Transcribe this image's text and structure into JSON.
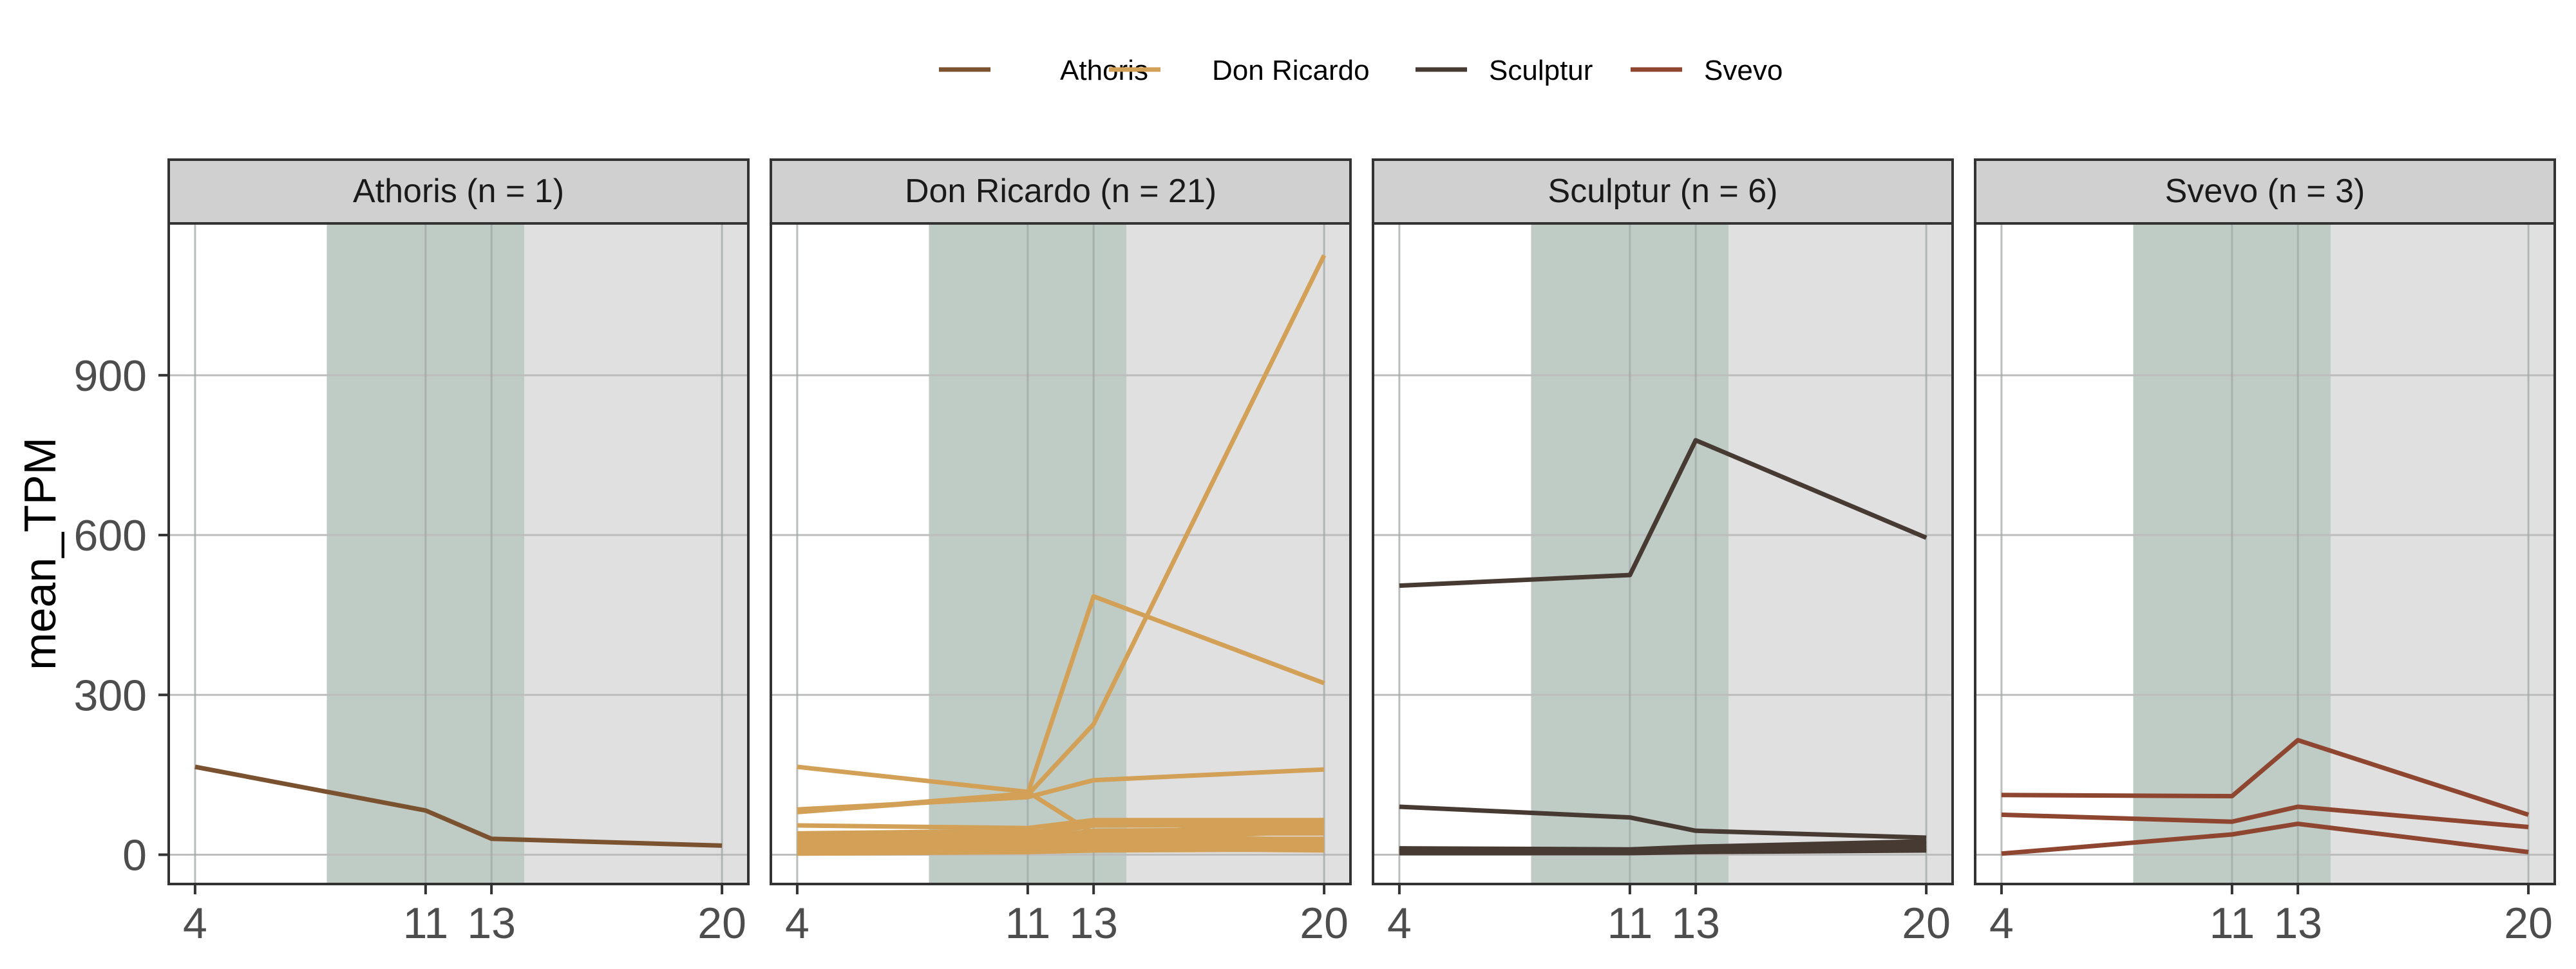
{
  "legend": {
    "entries": [
      {
        "label": "Athoris",
        "color": "#7b5230"
      },
      {
        "label": "Don Ricardo",
        "color": "#d2a056"
      },
      {
        "label": "Sculptur",
        "color": "#463a33"
      },
      {
        "label": "Svevo",
        "color": "#8f4630"
      }
    ]
  },
  "chart_data": {
    "type": "line",
    "ylabel": "mean_TPM",
    "xlabel": "",
    "x_ticks": [
      4,
      11,
      13,
      20
    ],
    "y_ticks": [
      0,
      300,
      600,
      900
    ],
    "xlim": [
      3.2,
      20.8
    ],
    "ylim": [
      -55,
      1185
    ],
    "grid": true,
    "legend_position": "top",
    "shaded_regions": [
      {
        "x_start": 8,
        "x_end": 14,
        "color": "#bfccc5"
      },
      {
        "x_start": 14,
        "x_end": 20.8,
        "color": "#e0e0e0"
      }
    ],
    "panels": [
      {
        "title": "Athoris (n = 1)",
        "color": "#7b5230",
        "series": [
          {
            "x": [
              4,
              11,
              13,
              20
            ],
            "y": [
              165,
              83,
              30,
              17
            ]
          }
        ]
      },
      {
        "title": "Don Ricardo (n = 21)",
        "color": "#d2a056",
        "series": [
          {
            "x": [
              4,
              11,
              13,
              20
            ],
            "y": [
              80,
              112,
              245,
              1125
            ]
          },
          {
            "x": [
              4,
              11,
              13,
              20
            ],
            "y": [
              80,
              115,
              485,
              322
            ]
          },
          {
            "x": [
              4,
              11,
              13,
              20
            ],
            "y": [
              165,
              118,
              40,
              20
            ]
          },
          {
            "x": [
              4,
              11,
              13,
              20
            ],
            "y": [
              85,
              108,
              140,
              160
            ]
          },
          {
            "x": [
              4,
              11,
              13,
              20
            ],
            "y": [
              55,
              50,
              65,
              65
            ]
          },
          {
            "x": [
              4,
              11,
              13,
              20
            ],
            "y": [
              35,
              40,
              60,
              60
            ]
          },
          {
            "x": [
              4,
              11,
              13,
              20
            ],
            "y": [
              30,
              35,
              55,
              55
            ]
          },
          {
            "x": [
              4,
              11,
              13,
              20
            ],
            "y": [
              25,
              30,
              45,
              48
            ]
          },
          {
            "x": [
              4,
              11,
              13,
              20
            ],
            "y": [
              20,
              25,
              40,
              40
            ]
          },
          {
            "x": [
              4,
              11,
              13,
              20
            ],
            "y": [
              15,
              22,
              30,
              30
            ]
          },
          {
            "x": [
              4,
              11,
              13,
              20
            ],
            "y": [
              12,
              18,
              25,
              28
            ]
          },
          {
            "x": [
              4,
              11,
              13,
              20
            ],
            "y": [
              10,
              15,
              20,
              25
            ]
          },
          {
            "x": [
              4,
              11,
              13,
              20
            ],
            "y": [
              8,
              12,
              15,
              20
            ]
          },
          {
            "x": [
              4,
              11,
              13,
              20
            ],
            "y": [
              5,
              10,
              12,
              15
            ]
          },
          {
            "x": [
              4,
              11,
              13,
              20
            ],
            "y": [
              3,
              8,
              10,
              12
            ]
          },
          {
            "x": [
              4,
              11,
              13,
              20
            ],
            "y": [
              2,
              5,
              8,
              10
            ]
          },
          {
            "x": [
              4,
              11,
              13,
              20
            ],
            "y": [
              20,
              30,
              12,
              8
            ]
          },
          {
            "x": [
              4,
              11,
              13,
              20
            ],
            "y": [
              28,
              40,
              18,
              14
            ]
          },
          {
            "x": [
              4,
              11,
              13,
              20
            ],
            "y": [
              40,
              45,
              35,
              22
            ]
          },
          {
            "x": [
              4,
              11,
              13,
              20
            ],
            "y": [
              18,
              25,
              35,
              65
            ]
          },
          {
            "x": [
              4,
              11,
              13,
              20
            ],
            "y": [
              6,
              10,
              25,
              45
            ]
          }
        ]
      },
      {
        "title": "Sculptur (n = 6)",
        "color": "#463a33",
        "series": [
          {
            "x": [
              4,
              11,
              13,
              20
            ],
            "y": [
              505,
              525,
              778,
              595
            ]
          },
          {
            "x": [
              4,
              11,
              13,
              20
            ],
            "y": [
              90,
              70,
              45,
              32
            ]
          },
          {
            "x": [
              4,
              11,
              13,
              20
            ],
            "y": [
              12,
              10,
              15,
              25
            ]
          },
          {
            "x": [
              4,
              11,
              13,
              20
            ],
            "y": [
              9,
              8,
              10,
              18
            ]
          },
          {
            "x": [
              4,
              11,
              13,
              20
            ],
            "y": [
              6,
              5,
              8,
              12
            ]
          },
          {
            "x": [
              4,
              11,
              13,
              20
            ],
            "y": [
              3,
              3,
              5,
              8
            ]
          }
        ]
      },
      {
        "title": "Svevo (n = 3)",
        "color": "#8f4630",
        "series": [
          {
            "x": [
              4,
              11,
              13,
              20
            ],
            "y": [
              112,
              110,
              215,
              75
            ]
          },
          {
            "x": [
              4,
              11,
              13,
              20
            ],
            "y": [
              75,
              62,
              90,
              52
            ]
          },
          {
            "x": [
              4,
              11,
              13,
              20
            ],
            "y": [
              2,
              38,
              58,
              5
            ]
          }
        ]
      }
    ]
  }
}
